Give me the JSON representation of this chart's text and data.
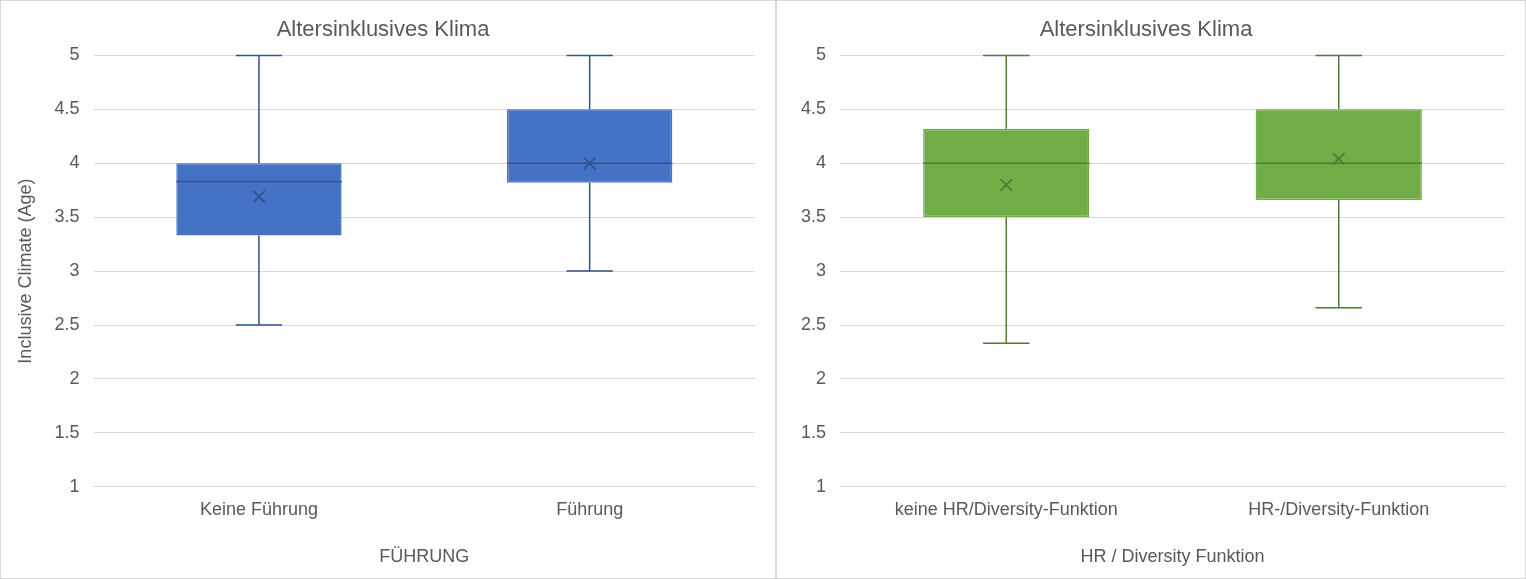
{
  "chart_data": [
    {
      "type": "box",
      "title": "Altersinklusives Klima",
      "xlabel": "FÜHRUNG",
      "ylabel": "Inclusive Climate (Age)",
      "categories": [
        "Keine Führung",
        "Führung"
      ],
      "ylim": [
        1,
        5
      ],
      "yticks": [
        1,
        1.5,
        2,
        2.5,
        3,
        3.5,
        4,
        4.5,
        5
      ],
      "grid": "y",
      "marker": "cross",
      "series": [
        {
          "color": "#4472c4",
          "boxes": [
            {
              "low": 2.5,
              "q1": 3.33,
              "median": 3.83,
              "q3": 4.0,
              "high": 5,
              "mean": 3.69
            },
            {
              "low": 3,
              "q1": 3.82,
              "median": 4.0,
              "q3": 4.5,
              "high": 5,
              "mean": 4.0
            }
          ]
        }
      ]
    },
    {
      "type": "box",
      "title": "Altersinklusives Klima",
      "xlabel": "HR / Diversity Funktion",
      "categories": [
        "keine HR/Diversity-Funktion",
        "HR-/Diversity-Funktion"
      ],
      "ylim": [
        1,
        5
      ],
      "yticks": [
        1,
        1.5,
        2,
        2.5,
        3,
        3.5,
        4,
        4.5,
        5
      ],
      "grid": "y",
      "marker": "cross",
      "series": [
        {
          "color": "#70ad47",
          "boxes": [
            {
              "low": 2.33,
              "q1": 3.5,
              "median": 4.0,
              "q3": 4.32,
              "high": 5,
              "mean": 3.8
            },
            {
              "low": 2.66,
              "q1": 3.66,
              "median": 4.0,
              "q3": 4.5,
              "high": 5,
              "mean": 4.04
            }
          ]
        }
      ]
    }
  ]
}
